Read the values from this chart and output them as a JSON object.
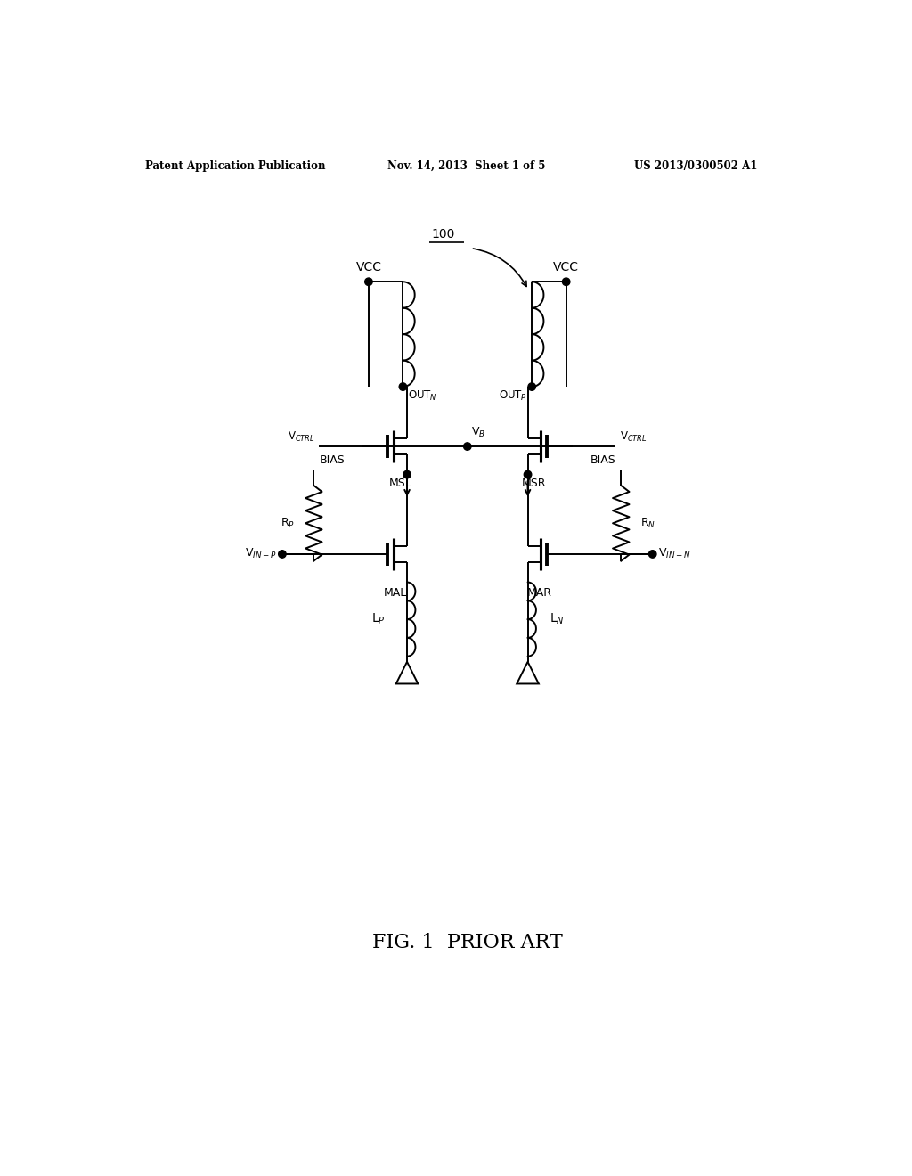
{
  "title": "FIG. 1  PRIOR ART",
  "header_left": "Patent Application Publication",
  "header_middle": "Nov. 14, 2013  Sheet 1 of 5",
  "header_right": "US 2013/0300502 A1",
  "bg_color": "#ffffff",
  "line_color": "#000000",
  "fig_label": "100",
  "page_width": 10.24,
  "page_height": 13.2
}
